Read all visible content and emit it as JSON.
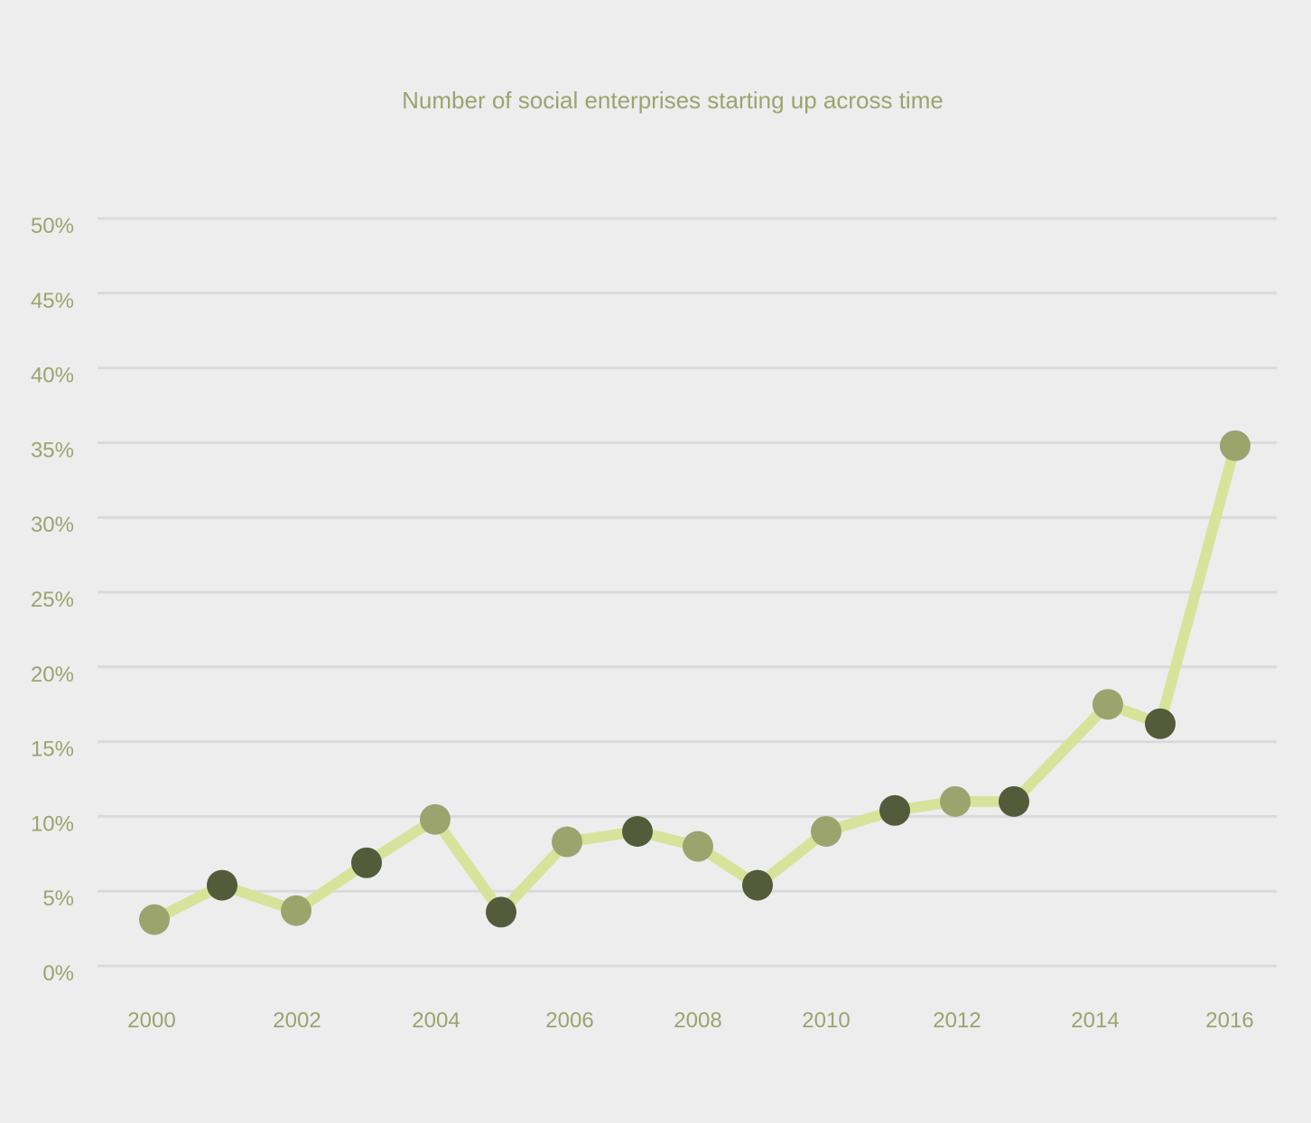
{
  "chart_data": {
    "type": "line",
    "title": "Number of social enterprises starting up across time",
    "xlabel": "",
    "ylabel": "",
    "x": [
      2000,
      2001,
      2002,
      2003,
      2004,
      2005,
      2006,
      2007,
      2008,
      2009,
      2010,
      2011,
      2012,
      2013,
      2014,
      2015,
      2016
    ],
    "values": [
      3.1,
      5.4,
      3.7,
      6.9,
      9.8,
      3.6,
      8.3,
      9.0,
      8.0,
      5.4,
      9.0,
      10.4,
      11.0,
      11.0,
      17.5,
      16.2,
      34.8
    ],
    "x_tick_labels": [
      "2000",
      "2002",
      "2004",
      "2006",
      "2008",
      "2010",
      "2012",
      "2014",
      "2016"
    ],
    "y_tick_labels": [
      "0%",
      "5%",
      "10%",
      "15%",
      "20%",
      "25%",
      "30%",
      "35%",
      "40%",
      "45%",
      "50%"
    ],
    "ylim": [
      0,
      50
    ],
    "grid": true,
    "colors": {
      "background": "#ededee",
      "grid": "#dadadc",
      "line": "#d7e39a",
      "marker_light": "#9ca46e",
      "marker_dark": "#545b3b",
      "text": "#9ca46e"
    }
  }
}
